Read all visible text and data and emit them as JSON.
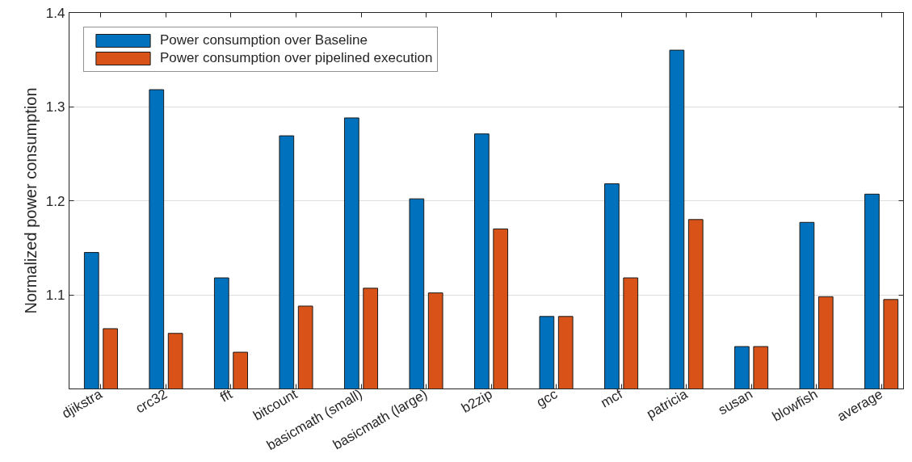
{
  "chart_data": {
    "type": "bar",
    "ylabel": "Normalized power consumption",
    "categories": [
      "djikstra",
      "crc32",
      "fft",
      "bitcount",
      "basicmath (small)",
      "basicmath (large)",
      "b2zip",
      "gcc",
      "mcf",
      "patricia",
      "susan",
      "blowfish",
      "average"
    ],
    "series": [
      {
        "name": "Power consumption over Baseline",
        "color": "#0072bd",
        "values": [
          1.145,
          1.318,
          1.118,
          1.269,
          1.288,
          1.202,
          1.271,
          1.077,
          1.218,
          1.36,
          1.045,
          1.177,
          1.207
        ]
      },
      {
        "name": "Power consumption over pipelined execution",
        "color": "#d95319",
        "values": [
          1.064,
          1.059,
          1.039,
          1.088,
          1.107,
          1.102,
          1.17,
          1.077,
          1.118,
          1.18,
          1.045,
          1.098,
          1.095
        ]
      }
    ],
    "ylim": [
      1.0,
      1.4
    ],
    "yticks": [
      1.1,
      1.2,
      1.3,
      1.4
    ],
    "grid": "y",
    "legend": "top left"
  }
}
